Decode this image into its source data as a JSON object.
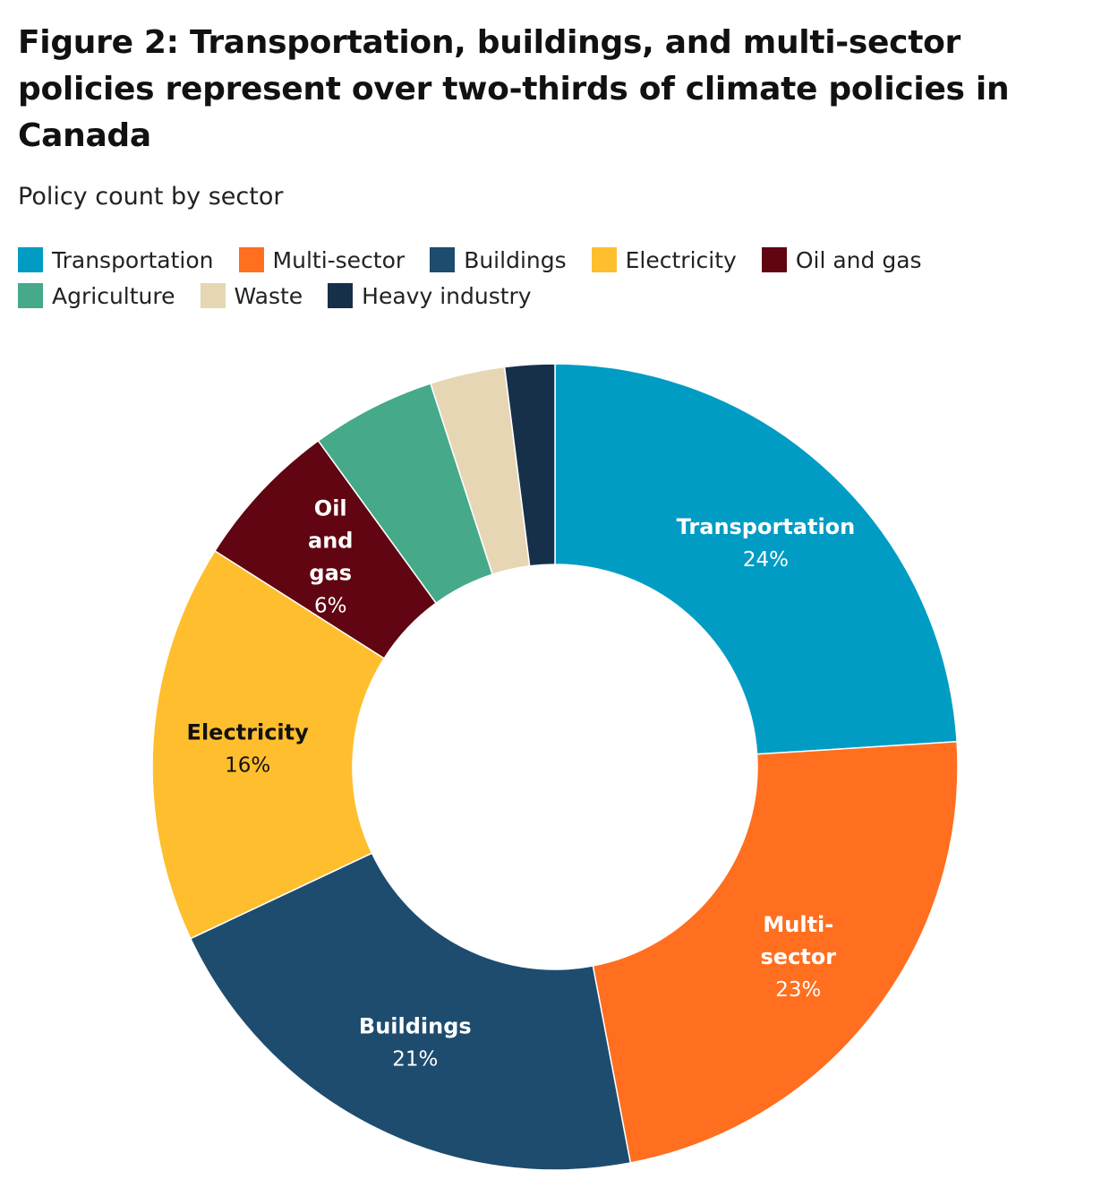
{
  "title": "Figure 2: Transportation, buildings, and multi-sector policies represent over two-thirds of climate policies in Canada",
  "subtitle": "Policy count by sector",
  "legend": {
    "rows": [
      [
        {
          "label": "Transportation",
          "color": "#009CC4"
        },
        {
          "label": "Multi-sector",
          "color": "#FF6F1F"
        },
        {
          "label": "Buildings",
          "color": "#1D4C6F"
        },
        {
          "label": "Electricity",
          "color": "#FFBE2E"
        },
        {
          "label": "Oil and gas",
          "color": "#600511"
        }
      ],
      [
        {
          "label": "Agriculture",
          "color": "#45A98A"
        },
        {
          "label": "Waste",
          "color": "#E6D6B3"
        },
        {
          "label": "Heavy industry",
          "color": "#17304A"
        }
      ]
    ]
  },
  "chart_data": {
    "type": "pie",
    "donut": true,
    "series": [
      {
        "name": "Transportation",
        "value": 24,
        "pct_label": "24%",
        "label_lines": [
          "Transportation"
        ],
        "color": "#009CC4",
        "label_color": "#ffffff",
        "show_label": true
      },
      {
        "name": "Multi-sector",
        "value": 23,
        "pct_label": "23%",
        "label_lines": [
          "Multi-",
          "sector"
        ],
        "color": "#FF6F1F",
        "label_color": "#ffffff",
        "show_label": true
      },
      {
        "name": "Buildings",
        "value": 21,
        "pct_label": "21%",
        "label_lines": [
          "Buildings"
        ],
        "color": "#1D4C6F",
        "label_color": "#ffffff",
        "show_label": true
      },
      {
        "name": "Electricity",
        "value": 16,
        "pct_label": "16%",
        "label_lines": [
          "Electricity"
        ],
        "color": "#FFBE2E",
        "label_color": "#111111",
        "show_label": true
      },
      {
        "name": "Oil and gas",
        "value": 6,
        "pct_label": "6%",
        "label_lines": [
          "Oil",
          "and",
          "gas"
        ],
        "color": "#600511",
        "label_color": "#ffffff",
        "show_label": true
      },
      {
        "name": "Agriculture",
        "value": 5,
        "color": "#45A98A",
        "show_label": false
      },
      {
        "name": "Waste",
        "value": 3,
        "color": "#E6D6B3",
        "show_label": false
      },
      {
        "name": "Heavy industry",
        "value": 2,
        "color": "#17304A",
        "show_label": false
      }
    ]
  }
}
